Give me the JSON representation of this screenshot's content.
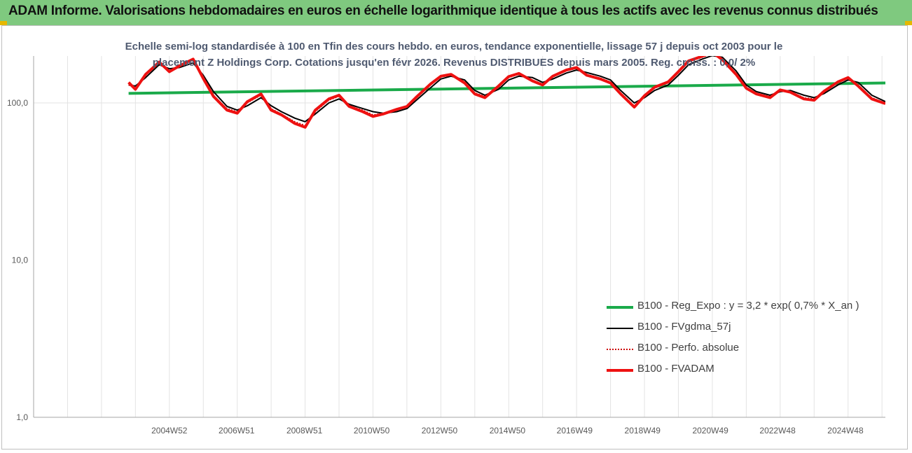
{
  "banner": {
    "title": "ADAM Informe. Valorisations hebdomadaires en euros en échelle logarithmique identique à tous les actifs avec les revenus connus distribués"
  },
  "chart_data": {
    "type": "line",
    "title_lines": [
      "Echelle semi-log standardisée à 100 en Tfin des cours hebdo. en euros, tendance exponentielle, lissage 57 j depuis oct 2003 pour le",
      "placement Z Holdings Corp. Cotations jusqu'en févr 2026. Revenus DISTRIBUES depuis mars 2005. Reg. croiss. : 0,0/ 2%"
    ],
    "xlabel": "",
    "ylabel": "",
    "y_scale": "log",
    "ylim": [
      1,
      200
    ],
    "y_ticks": [
      "1,0",
      "10,0",
      "100,0"
    ],
    "x_range": [
      2001.0,
      2026.1
    ],
    "x_ticks": [
      "2004W52",
      "2006W51",
      "2008W51",
      "2010W50",
      "2012W50",
      "2014W50",
      "2016W49",
      "2018W49",
      "2020W49",
      "2022W48",
      "2024W48"
    ],
    "grid": "vertical",
    "legend_position": "bottom-right",
    "series": [
      {
        "name": "B100 - Reg_Expo : y = 3,2 * exp( 0,7% *  X_an )",
        "color": "#1aaa4a",
        "style": "solid-thick",
        "points": [
          [
            2003.8,
            115
          ],
          [
            2026.1,
            134
          ]
        ]
      },
      {
        "name": "B100 - FVgdma_57j",
        "color": "#000000",
        "style": "solid",
        "points": [
          [
            2003.8,
            130
          ],
          [
            2004.0,
            128
          ],
          [
            2004.3,
            145
          ],
          [
            2004.7,
            175
          ],
          [
            2005.0,
            165
          ],
          [
            2005.3,
            168
          ],
          [
            2005.7,
            180
          ],
          [
            2006.0,
            150
          ],
          [
            2006.3,
            118
          ],
          [
            2006.7,
            95
          ],
          [
            2007.0,
            90
          ],
          [
            2007.3,
            96
          ],
          [
            2007.7,
            108
          ],
          [
            2008.0,
            96
          ],
          [
            2008.3,
            88
          ],
          [
            2008.7,
            80
          ],
          [
            2009.0,
            76
          ],
          [
            2009.3,
            85
          ],
          [
            2009.7,
            100
          ],
          [
            2010.0,
            106
          ],
          [
            2010.3,
            98
          ],
          [
            2010.7,
            92
          ],
          [
            2011.0,
            88
          ],
          [
            2011.3,
            86
          ],
          [
            2011.7,
            88
          ],
          [
            2012.0,
            92
          ],
          [
            2012.3,
            105
          ],
          [
            2012.7,
            125
          ],
          [
            2013.0,
            142
          ],
          [
            2013.3,
            148
          ],
          [
            2013.7,
            140
          ],
          [
            2014.0,
            120
          ],
          [
            2014.3,
            112
          ],
          [
            2014.7,
            122
          ],
          [
            2015.0,
            140
          ],
          [
            2015.3,
            148
          ],
          [
            2015.7,
            145
          ],
          [
            2016.0,
            135
          ],
          [
            2016.3,
            142
          ],
          [
            2016.7,
            155
          ],
          [
            2017.0,
            162
          ],
          [
            2017.3,
            156
          ],
          [
            2017.7,
            148
          ],
          [
            2018.0,
            140
          ],
          [
            2018.3,
            120
          ],
          [
            2018.7,
            100
          ],
          [
            2019.0,
            108
          ],
          [
            2019.3,
            120
          ],
          [
            2019.7,
            130
          ],
          [
            2020.0,
            150
          ],
          [
            2020.3,
            175
          ],
          [
            2020.7,
            190
          ],
          [
            2021.0,
            200
          ],
          [
            2021.3,
            195
          ],
          [
            2021.7,
            160
          ],
          [
            2022.0,
            130
          ],
          [
            2022.3,
            118
          ],
          [
            2022.7,
            112
          ],
          [
            2023.0,
            118
          ],
          [
            2023.3,
            120
          ],
          [
            2023.7,
            112
          ],
          [
            2024.0,
            108
          ],
          [
            2024.3,
            115
          ],
          [
            2024.7,
            130
          ],
          [
            2025.0,
            140
          ],
          [
            2025.3,
            135
          ],
          [
            2025.7,
            112
          ],
          [
            2026.1,
            102
          ]
        ]
      },
      {
        "name": "B100 - Perfo. absolue",
        "color": "#cc0000",
        "style": "dotted",
        "points": [
          [
            2003.8,
            130
          ],
          [
            2004.0,
            124
          ],
          [
            2004.3,
            150
          ],
          [
            2004.7,
            180
          ],
          [
            2005.0,
            160
          ],
          [
            2005.3,
            170
          ],
          [
            2005.7,
            188
          ],
          [
            2006.0,
            145
          ],
          [
            2006.3,
            112
          ],
          [
            2006.7,
            92
          ],
          [
            2007.0,
            88
          ],
          [
            2007.3,
            100
          ],
          [
            2007.7,
            112
          ],
          [
            2008.0,
            92
          ],
          [
            2008.3,
            85
          ],
          [
            2008.7,
            76
          ],
          [
            2009.0,
            72
          ],
          [
            2009.3,
            88
          ],
          [
            2009.7,
            104
          ],
          [
            2010.0,
            110
          ],
          [
            2010.3,
            96
          ],
          [
            2010.7,
            90
          ],
          [
            2011.0,
            84
          ],
          [
            2011.3,
            86
          ],
          [
            2011.7,
            90
          ],
          [
            2012.0,
            94
          ],
          [
            2012.3,
            108
          ],
          [
            2012.7,
            130
          ],
          [
            2013.0,
            146
          ],
          [
            2013.3,
            150
          ],
          [
            2013.7,
            136
          ],
          [
            2014.0,
            116
          ],
          [
            2014.3,
            110
          ],
          [
            2014.7,
            126
          ],
          [
            2015.0,
            145
          ],
          [
            2015.3,
            152
          ],
          [
            2015.7,
            140
          ],
          [
            2016.0,
            132
          ],
          [
            2016.3,
            146
          ],
          [
            2016.7,
            160
          ],
          [
            2017.0,
            166
          ],
          [
            2017.3,
            152
          ],
          [
            2017.7,
            144
          ],
          [
            2018.0,
            136
          ],
          [
            2018.3,
            116
          ],
          [
            2018.7,
            96
          ],
          [
            2019.0,
            110
          ],
          [
            2019.3,
            124
          ],
          [
            2019.7,
            134
          ],
          [
            2020.0,
            156
          ],
          [
            2020.3,
            182
          ],
          [
            2020.7,
            195
          ],
          [
            2021.0,
            205
          ],
          [
            2021.3,
            190
          ],
          [
            2021.7,
            155
          ],
          [
            2022.0,
            126
          ],
          [
            2022.3,
            115
          ],
          [
            2022.7,
            110
          ],
          [
            2023.0,
            120
          ],
          [
            2023.3,
            118
          ],
          [
            2023.7,
            108
          ],
          [
            2024.0,
            106
          ],
          [
            2024.3,
            118
          ],
          [
            2024.7,
            134
          ],
          [
            2025.0,
            143
          ],
          [
            2025.3,
            130
          ],
          [
            2025.7,
            108
          ],
          [
            2026.1,
            100
          ]
        ]
      },
      {
        "name": "B100 - FVADAM",
        "color": "#ee1111",
        "style": "solid-thick",
        "points": [
          [
            2003.8,
            135
          ],
          [
            2004.0,
            122
          ],
          [
            2004.3,
            152
          ],
          [
            2004.7,
            182
          ],
          [
            2005.0,
            158
          ],
          [
            2005.3,
            172
          ],
          [
            2005.7,
            190
          ],
          [
            2006.0,
            143
          ],
          [
            2006.3,
            110
          ],
          [
            2006.7,
            90
          ],
          [
            2007.0,
            86
          ],
          [
            2007.3,
            102
          ],
          [
            2007.7,
            114
          ],
          [
            2008.0,
            90
          ],
          [
            2008.3,
            84
          ],
          [
            2008.7,
            74
          ],
          [
            2009.0,
            70
          ],
          [
            2009.3,
            90
          ],
          [
            2009.7,
            106
          ],
          [
            2010.0,
            112
          ],
          [
            2010.3,
            95
          ],
          [
            2010.7,
            88
          ],
          [
            2011.0,
            82
          ],
          [
            2011.3,
            85
          ],
          [
            2011.7,
            91
          ],
          [
            2012.0,
            95
          ],
          [
            2012.3,
            110
          ],
          [
            2012.7,
            132
          ],
          [
            2013.0,
            148
          ],
          [
            2013.3,
            152
          ],
          [
            2013.7,
            134
          ],
          [
            2014.0,
            114
          ],
          [
            2014.3,
            108
          ],
          [
            2014.7,
            128
          ],
          [
            2015.0,
            147
          ],
          [
            2015.3,
            154
          ],
          [
            2015.7,
            138
          ],
          [
            2016.0,
            130
          ],
          [
            2016.3,
            148
          ],
          [
            2016.7,
            162
          ],
          [
            2017.0,
            168
          ],
          [
            2017.3,
            150
          ],
          [
            2017.7,
            142
          ],
          [
            2018.0,
            134
          ],
          [
            2018.3,
            114
          ],
          [
            2018.7,
            94
          ],
          [
            2019.0,
            111
          ],
          [
            2019.3,
            126
          ],
          [
            2019.7,
            136
          ],
          [
            2020.0,
            158
          ],
          [
            2020.3,
            185
          ],
          [
            2020.7,
            198
          ],
          [
            2021.0,
            210
          ],
          [
            2021.3,
            188
          ],
          [
            2021.7,
            152
          ],
          [
            2022.0,
            124
          ],
          [
            2022.3,
            114
          ],
          [
            2022.7,
            108
          ],
          [
            2023.0,
            121
          ],
          [
            2023.3,
            117
          ],
          [
            2023.7,
            106
          ],
          [
            2024.0,
            104
          ],
          [
            2024.3,
            119
          ],
          [
            2024.7,
            136
          ],
          [
            2025.0,
            145
          ],
          [
            2025.3,
            128
          ],
          [
            2025.7,
            106
          ],
          [
            2026.1,
            99
          ]
        ]
      }
    ]
  }
}
